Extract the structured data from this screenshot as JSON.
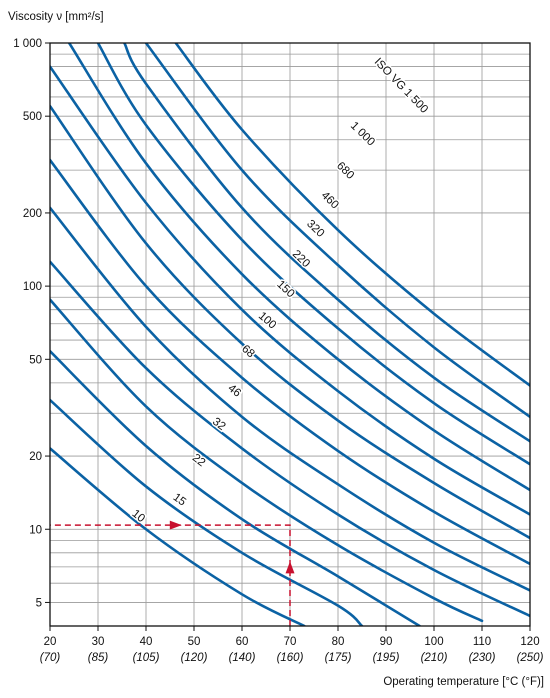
{
  "chart_data": {
    "type": "line",
    "y_label": "Viscosity ν [mm²/s]",
    "x_label": "Operating temperature [°C (°F)]",
    "x_scale": "linear",
    "y_scale": "log",
    "xlim": [
      20,
      120
    ],
    "ylim": [
      4,
      1000
    ],
    "grid": true,
    "x_ticks": [
      {
        "value": 20,
        "label": "20",
        "sub": "(70)"
      },
      {
        "value": 30,
        "label": "30",
        "sub": "(85)"
      },
      {
        "value": 40,
        "label": "40",
        "sub": "(105)"
      },
      {
        "value": 50,
        "label": "50",
        "sub": "(120)"
      },
      {
        "value": 60,
        "label": "60",
        "sub": "(140)"
      },
      {
        "value": 70,
        "label": "70",
        "sub": "(160)"
      },
      {
        "value": 80,
        "label": "80",
        "sub": "(175)"
      },
      {
        "value": 90,
        "label": "90",
        "sub": "(195)"
      },
      {
        "value": 100,
        "label": "100",
        "sub": "(210)"
      },
      {
        "value": 110,
        "label": "110",
        "sub": "(230)"
      },
      {
        "value": 120,
        "label": "120",
        "sub": "(250)"
      }
    ],
    "y_ticks": [
      {
        "value": 5,
        "label": "5"
      },
      {
        "value": 10,
        "label": "10"
      },
      {
        "value": 20,
        "label": "20"
      },
      {
        "value": 50,
        "label": "50"
      },
      {
        "value": 100,
        "label": "100"
      },
      {
        "value": 200,
        "label": "200"
      },
      {
        "value": 500,
        "label": "500"
      },
      {
        "value": 1000,
        "label": "1 000"
      }
    ],
    "y_grid": [
      4,
      5,
      6,
      7,
      8,
      9,
      10,
      20,
      30,
      40,
      50,
      60,
      70,
      80,
      90,
      100,
      200,
      300,
      400,
      500,
      600,
      700,
      800,
      900,
      1000
    ],
    "series": [
      {
        "name": "10",
        "label": "10",
        "label_at": [
          37.6,
          10.8
        ],
        "points": [
          [
            20,
            21.5
          ],
          [
            40,
            10.0
          ],
          [
            60,
            5.4
          ],
          [
            73,
            4.0
          ]
        ]
      },
      {
        "name": "15",
        "label": "15",
        "label_at": [
          46.2,
          12.6
        ],
        "points": [
          [
            20,
            34
          ],
          [
            40,
            15.0
          ],
          [
            60,
            8.0
          ],
          [
            80,
            4.85
          ],
          [
            85,
            4.0
          ]
        ]
      },
      {
        "name": "22",
        "label": "22",
        "label_at": [
          50.2,
          18.3
        ],
        "points": [
          [
            20,
            54
          ],
          [
            40,
            22.0
          ],
          [
            60,
            11.0
          ],
          [
            80,
            6.4
          ],
          [
            97,
            4.0
          ]
        ]
      },
      {
        "name": "32",
        "label": "32",
        "label_at": [
          54.4,
          25.8
        ],
        "points": [
          [
            20,
            88
          ],
          [
            40,
            32
          ],
          [
            60,
            15.5
          ],
          [
            80,
            8.6
          ],
          [
            100,
            5.2
          ],
          [
            110,
            4.2
          ]
        ]
      },
      {
        "name": "46",
        "label": "46",
        "label_at": [
          57.6,
          35.4
        ],
        "points": [
          [
            20,
            126
          ],
          [
            40,
            46
          ],
          [
            60,
            21.5
          ],
          [
            80,
            11.5
          ],
          [
            100,
            6.8
          ],
          [
            120,
            4.4
          ]
        ]
      },
      {
        "name": "68",
        "label": "68",
        "label_at": [
          60.4,
          51.5
        ],
        "points": [
          [
            20,
            210
          ],
          [
            40,
            68
          ],
          [
            60,
            29
          ],
          [
            80,
            15.3
          ],
          [
            100,
            8.8
          ],
          [
            120,
            5.6
          ]
        ]
      },
      {
        "name": "100",
        "label": "100",
        "label_at": [
          64.4,
          69
        ],
        "points": [
          [
            20,
            330
          ],
          [
            40,
            100
          ],
          [
            60,
            42
          ],
          [
            80,
            21
          ],
          [
            100,
            11.8
          ],
          [
            120,
            7.2
          ]
        ]
      },
      {
        "name": "150",
        "label": "150",
        "label_at": [
          68.2,
          93
        ],
        "points": [
          [
            20,
            550
          ],
          [
            40,
            150
          ],
          [
            60,
            58
          ],
          [
            80,
            28
          ],
          [
            100,
            15.5
          ],
          [
            120,
            9.2
          ]
        ]
      },
      {
        "name": "220",
        "label": "220",
        "label_at": [
          71.4,
          124
        ],
        "points": [
          [
            20,
            800
          ],
          [
            40,
            220
          ],
          [
            60,
            80
          ],
          [
            80,
            37
          ],
          [
            100,
            19.5
          ],
          [
            120,
            11.5
          ]
        ]
      },
      {
        "name": "320",
        "label": "320",
        "label_at": [
          74.4,
          165
        ],
        "points": [
          [
            24,
            1000
          ],
          [
            40,
            320
          ],
          [
            60,
            112
          ],
          [
            80,
            50
          ],
          [
            100,
            25.5
          ],
          [
            120,
            14.5
          ]
        ]
      },
      {
        "name": "460",
        "label": "460",
        "label_at": [
          77.4,
          216
        ],
        "points": [
          [
            30,
            1000
          ],
          [
            40,
            460
          ],
          [
            60,
            155
          ],
          [
            80,
            67
          ],
          [
            100,
            33
          ],
          [
            120,
            18.5
          ]
        ]
      },
      {
        "name": "680",
        "label": "680",
        "label_at": [
          80.6,
          286
        ],
        "points": [
          [
            35.5,
            1000
          ],
          [
            40,
            680
          ],
          [
            60,
            210
          ],
          [
            80,
            88
          ],
          [
            100,
            42
          ],
          [
            120,
            23
          ]
        ]
      },
      {
        "name": "1 000",
        "label": "1 000",
        "label_at": [
          84.2,
          405
        ],
        "points": [
          [
            40,
            1000
          ],
          [
            60,
            300
          ],
          [
            80,
            122
          ],
          [
            100,
            56
          ],
          [
            120,
            29
          ]
        ]
      },
      {
        "name": "ISO VG 1 500",
        "label": "ISO VG 1 500",
        "label_at": [
          92.2,
          640
        ],
        "points": [
          [
            46.2,
            1000
          ],
          [
            60,
            440
          ],
          [
            80,
            170
          ],
          [
            100,
            77
          ],
          [
            120,
            39
          ]
        ]
      }
    ],
    "annotation": {
      "color": "#c8102e",
      "style": "dashed-arrow",
      "path": [
        [
          70,
          4.0
        ],
        [
          70,
          10.4
        ],
        [
          20,
          10.4
        ]
      ],
      "arrows": [
        [
          70,
          6.9,
          "up"
        ],
        [
          46,
          10.4,
          "right"
        ]
      ]
    }
  }
}
